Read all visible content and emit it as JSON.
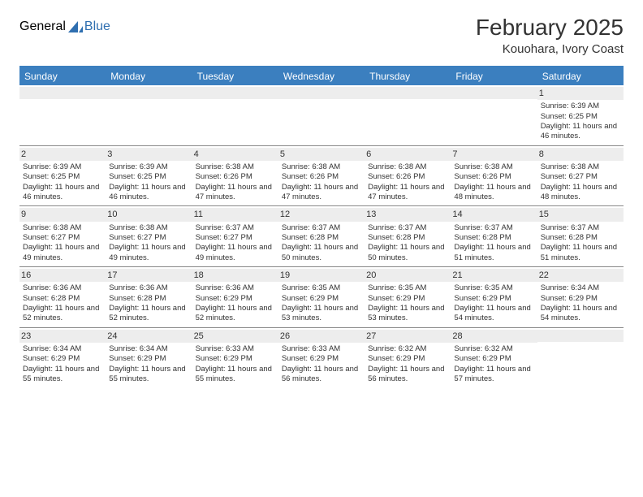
{
  "logo": {
    "text1": "General",
    "text2": "Blue"
  },
  "header": {
    "month_title": "February 2025",
    "location": "Kouohara, Ivory Coast"
  },
  "colors": {
    "brand_blue": "#3b7fbf",
    "logo_gray": "#5a5a5a",
    "daynum_bg": "#ededed",
    "divider": "#888888",
    "text": "#333333",
    "background": "#ffffff"
  },
  "calendar": {
    "day_headers": [
      "Sunday",
      "Monday",
      "Tuesday",
      "Wednesday",
      "Thursday",
      "Friday",
      "Saturday"
    ],
    "weeks": [
      [
        {
          "empty": true
        },
        {
          "empty": true
        },
        {
          "empty": true
        },
        {
          "empty": true
        },
        {
          "empty": true
        },
        {
          "empty": true
        },
        {
          "day": "1",
          "sunrise": "Sunrise: 6:39 AM",
          "sunset": "Sunset: 6:25 PM",
          "daylight": "Daylight: 11 hours and 46 minutes."
        }
      ],
      [
        {
          "day": "2",
          "sunrise": "Sunrise: 6:39 AM",
          "sunset": "Sunset: 6:25 PM",
          "daylight": "Daylight: 11 hours and 46 minutes."
        },
        {
          "day": "3",
          "sunrise": "Sunrise: 6:39 AM",
          "sunset": "Sunset: 6:25 PM",
          "daylight": "Daylight: 11 hours and 46 minutes."
        },
        {
          "day": "4",
          "sunrise": "Sunrise: 6:38 AM",
          "sunset": "Sunset: 6:26 PM",
          "daylight": "Daylight: 11 hours and 47 minutes."
        },
        {
          "day": "5",
          "sunrise": "Sunrise: 6:38 AM",
          "sunset": "Sunset: 6:26 PM",
          "daylight": "Daylight: 11 hours and 47 minutes."
        },
        {
          "day": "6",
          "sunrise": "Sunrise: 6:38 AM",
          "sunset": "Sunset: 6:26 PM",
          "daylight": "Daylight: 11 hours and 47 minutes."
        },
        {
          "day": "7",
          "sunrise": "Sunrise: 6:38 AM",
          "sunset": "Sunset: 6:26 PM",
          "daylight": "Daylight: 11 hours and 48 minutes."
        },
        {
          "day": "8",
          "sunrise": "Sunrise: 6:38 AM",
          "sunset": "Sunset: 6:27 PM",
          "daylight": "Daylight: 11 hours and 48 minutes."
        }
      ],
      [
        {
          "day": "9",
          "sunrise": "Sunrise: 6:38 AM",
          "sunset": "Sunset: 6:27 PM",
          "daylight": "Daylight: 11 hours and 49 minutes."
        },
        {
          "day": "10",
          "sunrise": "Sunrise: 6:38 AM",
          "sunset": "Sunset: 6:27 PM",
          "daylight": "Daylight: 11 hours and 49 minutes."
        },
        {
          "day": "11",
          "sunrise": "Sunrise: 6:37 AM",
          "sunset": "Sunset: 6:27 PM",
          "daylight": "Daylight: 11 hours and 49 minutes."
        },
        {
          "day": "12",
          "sunrise": "Sunrise: 6:37 AM",
          "sunset": "Sunset: 6:28 PM",
          "daylight": "Daylight: 11 hours and 50 minutes."
        },
        {
          "day": "13",
          "sunrise": "Sunrise: 6:37 AM",
          "sunset": "Sunset: 6:28 PM",
          "daylight": "Daylight: 11 hours and 50 minutes."
        },
        {
          "day": "14",
          "sunrise": "Sunrise: 6:37 AM",
          "sunset": "Sunset: 6:28 PM",
          "daylight": "Daylight: 11 hours and 51 minutes."
        },
        {
          "day": "15",
          "sunrise": "Sunrise: 6:37 AM",
          "sunset": "Sunset: 6:28 PM",
          "daylight": "Daylight: 11 hours and 51 minutes."
        }
      ],
      [
        {
          "day": "16",
          "sunrise": "Sunrise: 6:36 AM",
          "sunset": "Sunset: 6:28 PM",
          "daylight": "Daylight: 11 hours and 52 minutes."
        },
        {
          "day": "17",
          "sunrise": "Sunrise: 6:36 AM",
          "sunset": "Sunset: 6:28 PM",
          "daylight": "Daylight: 11 hours and 52 minutes."
        },
        {
          "day": "18",
          "sunrise": "Sunrise: 6:36 AM",
          "sunset": "Sunset: 6:29 PM",
          "daylight": "Daylight: 11 hours and 52 minutes."
        },
        {
          "day": "19",
          "sunrise": "Sunrise: 6:35 AM",
          "sunset": "Sunset: 6:29 PM",
          "daylight": "Daylight: 11 hours and 53 minutes."
        },
        {
          "day": "20",
          "sunrise": "Sunrise: 6:35 AM",
          "sunset": "Sunset: 6:29 PM",
          "daylight": "Daylight: 11 hours and 53 minutes."
        },
        {
          "day": "21",
          "sunrise": "Sunrise: 6:35 AM",
          "sunset": "Sunset: 6:29 PM",
          "daylight": "Daylight: 11 hours and 54 minutes."
        },
        {
          "day": "22",
          "sunrise": "Sunrise: 6:34 AM",
          "sunset": "Sunset: 6:29 PM",
          "daylight": "Daylight: 11 hours and 54 minutes."
        }
      ],
      [
        {
          "day": "23",
          "sunrise": "Sunrise: 6:34 AM",
          "sunset": "Sunset: 6:29 PM",
          "daylight": "Daylight: 11 hours and 55 minutes."
        },
        {
          "day": "24",
          "sunrise": "Sunrise: 6:34 AM",
          "sunset": "Sunset: 6:29 PM",
          "daylight": "Daylight: 11 hours and 55 minutes."
        },
        {
          "day": "25",
          "sunrise": "Sunrise: 6:33 AM",
          "sunset": "Sunset: 6:29 PM",
          "daylight": "Daylight: 11 hours and 55 minutes."
        },
        {
          "day": "26",
          "sunrise": "Sunrise: 6:33 AM",
          "sunset": "Sunset: 6:29 PM",
          "daylight": "Daylight: 11 hours and 56 minutes."
        },
        {
          "day": "27",
          "sunrise": "Sunrise: 6:32 AM",
          "sunset": "Sunset: 6:29 PM",
          "daylight": "Daylight: 11 hours and 56 minutes."
        },
        {
          "day": "28",
          "sunrise": "Sunrise: 6:32 AM",
          "sunset": "Sunset: 6:29 PM",
          "daylight": "Daylight: 11 hours and 57 minutes."
        },
        {
          "empty": true
        }
      ]
    ]
  }
}
